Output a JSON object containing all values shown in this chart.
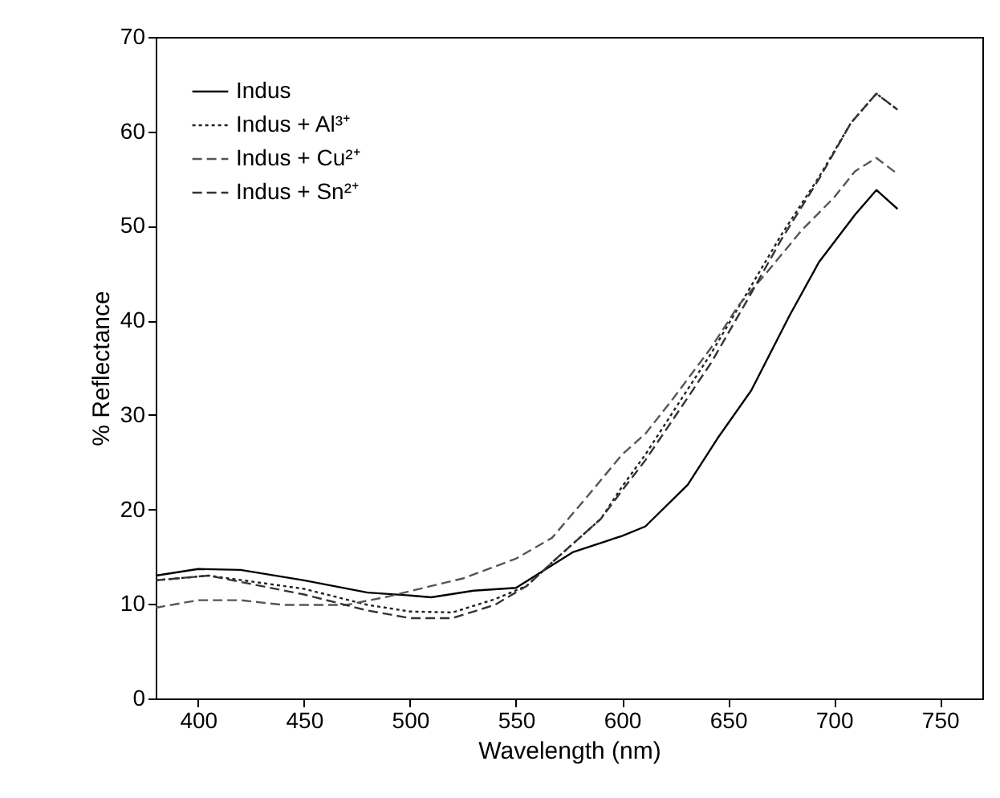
{
  "chart_data": {
    "type": "line",
    "xlabel": "Wavelength (nm)",
    "ylabel": "% Reflectance",
    "xlim": [
      380,
      770
    ],
    "ylim": [
      0,
      70
    ],
    "xticks": [
      400,
      450,
      500,
      550,
      600,
      650,
      700,
      750
    ],
    "yticks": [
      0,
      10,
      20,
      30,
      40,
      50,
      60,
      70
    ],
    "grid": false,
    "legend": "top left",
    "marker": "none",
    "series": [
      {
        "name": "Indus",
        "color": "#000000",
        "line_style": "solid",
        "x": [
          380,
          400,
          420,
          450,
          480,
          500,
          510,
          530,
          550,
          577,
          600,
          611,
          631,
          645,
          661,
          679,
          693,
          710,
          720,
          730
        ],
        "values": [
          13.0,
          13.7,
          13.6,
          12.5,
          11.2,
          10.9,
          10.7,
          11.4,
          11.7,
          15.5,
          17.2,
          18.2,
          22.6,
          27.5,
          32.6,
          40.5,
          46.2,
          51.2,
          53.8,
          51.8
        ]
      },
      {
        "name": "Indus + Al³⁺",
        "color": "#222222",
        "line_style": "dotted",
        "x": [
          380,
          405,
          450,
          480,
          500,
          520,
          540,
          555,
          570,
          590,
          600,
          611,
          624,
          642,
          660,
          675,
          693,
          708,
          720,
          730
        ],
        "values": [
          12.5,
          13.0,
          11.6,
          9.9,
          9.2,
          9.1,
          10.5,
          11.9,
          15.0,
          19.0,
          22.4,
          25.8,
          30.3,
          36.5,
          43.3,
          49.0,
          55.2,
          60.9,
          64.0,
          62.3
        ]
      },
      {
        "name": "Indus + Cu²⁺",
        "color": "#555555",
        "line_style": "dashed",
        "x": [
          380,
          400,
          420,
          440,
          470,
          490,
          510,
          525,
          550,
          567,
          583,
          600,
          611,
          624,
          642,
          655,
          668,
          685,
          700,
          710,
          720,
          730
        ],
        "values": [
          9.6,
          10.4,
          10.4,
          9.9,
          9.9,
          10.8,
          11.9,
          12.7,
          14.8,
          17.0,
          21.2,
          25.8,
          28.0,
          31.7,
          37.1,
          41.6,
          45.0,
          49.6,
          53.0,
          55.8,
          57.2,
          55.5
        ]
      },
      {
        "name": "Indus + Sn²⁺",
        "color": "#333333",
        "line_style": "dashed",
        "x": [
          380,
          405,
          450,
          480,
          500,
          520,
          540,
          555,
          570,
          590,
          600,
          611,
          624,
          642,
          660,
          675,
          693,
          708,
          720,
          730
        ],
        "values": [
          12.5,
          13.0,
          11.0,
          9.3,
          8.5,
          8.5,
          9.9,
          11.9,
          15.0,
          19.0,
          22.0,
          25.2,
          29.5,
          35.5,
          42.5,
          48.5,
          55.0,
          60.9,
          64.0,
          62.3
        ]
      }
    ]
  }
}
